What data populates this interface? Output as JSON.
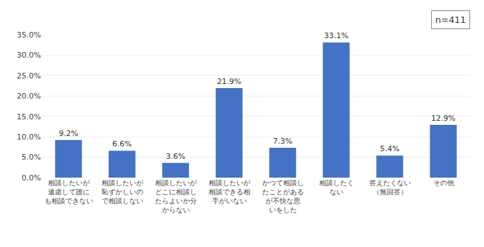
{
  "chart_data": {
    "type": "bar",
    "categories": [
      "相談したいが\n遠慮して誰に\nも相談できない",
      "相談したいが\n恥ずかしいの\nで相談しない",
      "相談したいが\nどこに相談し\nたらよいか分\nからない",
      "相談したいが\n相談できる相\n手がいない",
      "かつて相談し\nたことがある\nが不快な思\nいをした",
      "相談したく\nない",
      "答えたくない\n（無回答）",
      "その他"
    ],
    "values": [
      9.2,
      6.6,
      3.6,
      21.9,
      7.3,
      33.1,
      5.4,
      12.9
    ],
    "value_labels": [
      "9.2%",
      "6.6%",
      "3.6%",
      "21.9%",
      "7.3%",
      "33.1%",
      "5.4%",
      "12.9%"
    ],
    "data_labels": true,
    "color": "#4472C4",
    "ylim": [
      0,
      35.0
    ],
    "yticks": [
      {
        "value": 0.0,
        "label": "0.0%"
      },
      {
        "value": 5.0,
        "label": "5.0%"
      },
      {
        "value": 10.0,
        "label": "10.0%"
      },
      {
        "value": 15.0,
        "label": "15.0%"
      },
      {
        "value": 20.0,
        "label": "20.0%"
      },
      {
        "value": 25.0,
        "label": "25.0%"
      },
      {
        "value": 30.0,
        "label": "30.0%"
      },
      {
        "value": 35.0,
        "label": "35.0%"
      }
    ],
    "grid": true,
    "annotations": [
      "n=411"
    ]
  }
}
